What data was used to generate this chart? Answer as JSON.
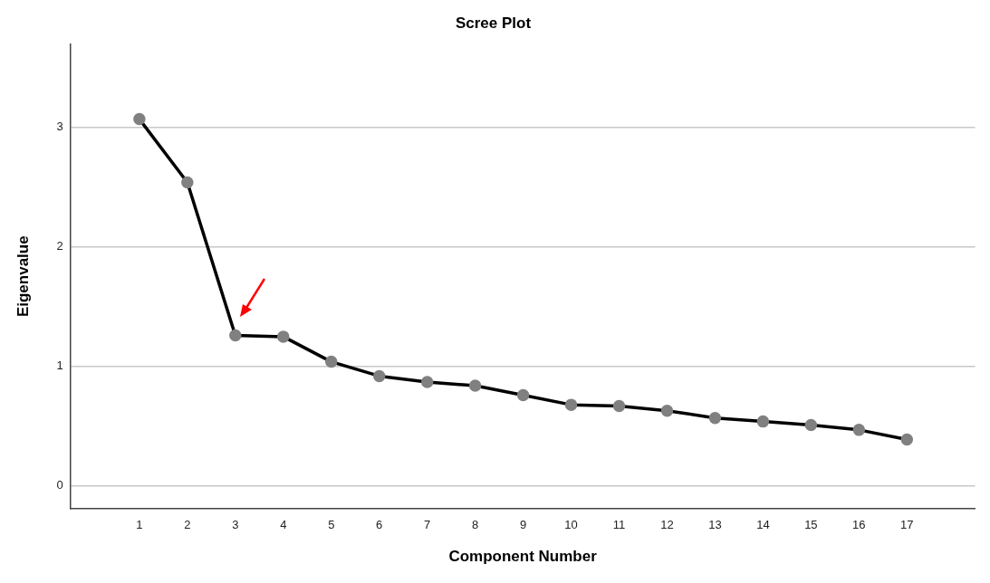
{
  "chart_data": {
    "type": "line",
    "title": "Scree Plot",
    "xlabel": "Component Number",
    "ylabel": "Eigenvalue",
    "x": [
      1,
      2,
      3,
      4,
      5,
      6,
      7,
      8,
      9,
      10,
      11,
      12,
      13,
      14,
      15,
      16,
      17
    ],
    "series": [
      {
        "color": "#000000",
        "values": [
          3.07,
          2.54,
          1.26,
          1.25,
          1.04,
          0.92,
          0.87,
          0.84,
          0.76,
          0.68,
          0.67,
          0.63,
          0.57,
          0.54,
          0.51,
          0.47,
          0.39
        ]
      }
    ],
    "xlim": [
      -0.44,
      18.42
    ],
    "xticks": [
      1,
      2,
      3,
      4,
      5,
      6,
      7,
      8,
      9,
      10,
      11,
      12,
      13,
      14,
      15,
      16,
      17
    ],
    "ylim": [
      -0.19,
      3.7
    ],
    "yticks": [
      0,
      1,
      2,
      3
    ],
    "grid": "y",
    "legend": false,
    "marker": "circle",
    "line_style": "solid"
  }
}
